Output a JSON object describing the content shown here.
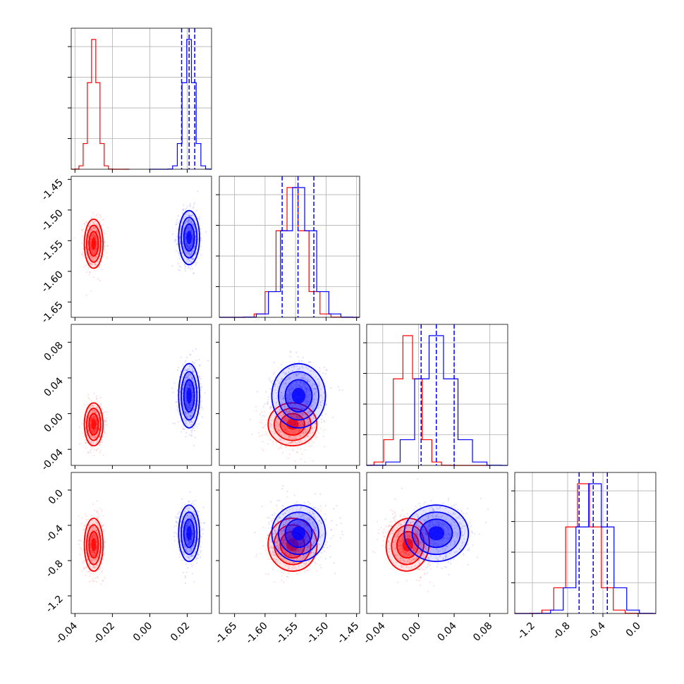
{
  "figure": {
    "ticks": {
      "p0": [
        "-0.04",
        "-0.02",
        "0.00",
        "0.02"
      ],
      "p1": [
        "-1.65",
        "-1.60",
        "-1.55",
        "-1.50",
        "-1.45"
      ],
      "p2": [
        "-0.04",
        "0.00",
        "0.04",
        "0.08"
      ],
      "p3": [
        "-1.2",
        "-0.8",
        "-0.4",
        "0.0"
      ],
      "p1_left": [
        "-1.45",
        "-1.50",
        "-1.55",
        "-1.60",
        "-1.65"
      ],
      "p2_left": [
        "0.08",
        "0.04",
        "0.00",
        "-0.04"
      ],
      "p3_left": [
        "0.0",
        "-0.4",
        "-0.8",
        "-1.2"
      ]
    }
  },
  "chart_data": {
    "type": "corner",
    "colors": {
      "red": "#ff0000",
      "blue": "#0000ff"
    },
    "grid": true,
    "parameters": [
      {
        "index": 0,
        "range": [
          -0.042,
          0.033
        ],
        "tick_values": [
          -0.04,
          -0.02,
          0.0,
          0.02
        ]
      },
      {
        "index": 1,
        "range": [
          -1.675,
          -1.445
        ],
        "tick_values": [
          -1.65,
          -1.6,
          -1.55,
          -1.5,
          -1.45
        ]
      },
      {
        "index": 2,
        "range": [
          -0.058,
          0.1
        ],
        "tick_values": [
          -0.04,
          0.0,
          0.04,
          0.08
        ]
      },
      {
        "index": 3,
        "range": [
          -1.4,
          0.2
        ],
        "tick_values": [
          -1.2,
          -0.8,
          -0.4,
          0.0
        ]
      }
    ],
    "series": [
      {
        "color": "red",
        "means": [
          -0.03,
          -1.555,
          -0.012,
          -0.62
        ],
        "sigmas": [
          0.0025,
          0.02,
          0.012,
          0.15
        ],
        "correlations": {
          "1-2": 0.0,
          "1-3": 0.2,
          "2-3": -0.3
        }
      },
      {
        "color": "blue",
        "means": [
          0.021,
          -1.545,
          0.02,
          -0.49
        ],
        "sigmas": [
          0.0028,
          0.022,
          0.018,
          0.16
        ],
        "correlations": {
          "1-2": 0.0,
          "1-3": 0.0,
          "2-3": 0.0
        }
      }
    ],
    "quantile_lines": {
      "color": "blue",
      "style": "dashed",
      "values": [
        [
          0.017,
          0.021,
          0.024
        ],
        [
          -1.572,
          -1.546,
          -1.52
        ],
        [
          0.003,
          0.02,
          0.04
        ],
        [
          -0.67,
          -0.51,
          -0.35
        ]
      ]
    },
    "contour_levels_sigma": [
      1.0,
      1.5,
      2.0
    ]
  }
}
